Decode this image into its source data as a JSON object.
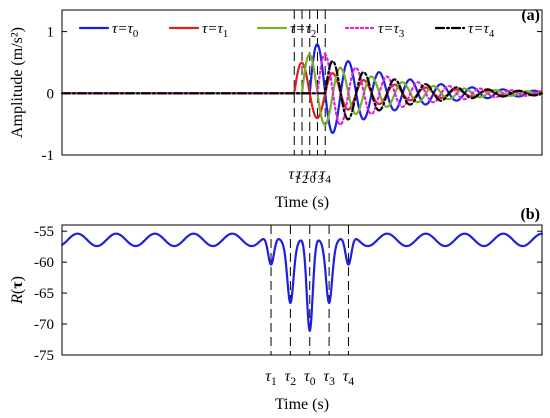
{
  "chart_data": [
    {
      "panel": "(a)",
      "type": "line",
      "xlabel": "Time (s)",
      "ylabel": "Amplitude (m/s²)",
      "ylim": [
        -1,
        1.35
      ],
      "yticks": [
        -1,
        0,
        1
      ],
      "grid": false,
      "legend": {
        "placement": "top",
        "orientation": "horizontal"
      },
      "marker_labels": [
        {
          "sym": "τ",
          "sub": "1"
        },
        {
          "sym": "τ",
          "sub": "2"
        },
        {
          "sym": "τ",
          "sub": "0"
        },
        {
          "sym": "τ",
          "sub": "3"
        },
        {
          "sym": "τ",
          "sub": "4"
        }
      ],
      "marker_times": [
        0.8,
        1.0,
        1.2,
        1.4,
        1.6
      ],
      "xlim": [
        -5.2,
        7.2
      ],
      "series": [
        {
          "name": "τ=τ0",
          "label_sym": "τ=τ",
          "label_sub": "0",
          "color": "#1f1fe0",
          "style": "solid",
          "delay": 1.2,
          "peak": 0.88
        },
        {
          "name": "τ=τ1",
          "label_sym": "τ=τ",
          "label_sub": "1",
          "color": "#e01f1f",
          "style": "solid",
          "delay": 0.8,
          "peak": 0.55
        },
        {
          "name": "τ=τ2",
          "label_sym": "τ=τ",
          "label_sub": "2",
          "color": "#76b02f",
          "style": "solid",
          "delay": 1.0,
          "peak": 0.7
        },
        {
          "name": "τ=τ3",
          "label_sym": "τ=τ",
          "label_sub": "3",
          "color": "#e21fe0",
          "style": "dotted",
          "delay": 1.4,
          "peak": 0.7
        },
        {
          "name": "τ=τ4",
          "label_sym": "τ=τ",
          "label_sub": "4",
          "color": "#000000",
          "style": "dashdot",
          "delay": 1.6,
          "peak": 0.58
        }
      ]
    },
    {
      "panel": "(b)",
      "type": "line",
      "xlabel": "Time (s)",
      "ylabel_sym": "R",
      "ylabel_arg": "τ",
      "ylim": [
        -75,
        -54
      ],
      "yticks": [
        -55,
        -60,
        -65,
        -70,
        -75
      ],
      "grid": false,
      "xlim": [
        -5.2,
        7.2
      ],
      "marker_labels": [
        {
          "sym": "τ",
          "sub": "1"
        },
        {
          "sym": "τ",
          "sub": "2"
        },
        {
          "sym": "τ",
          "sub": "0"
        },
        {
          "sym": "τ",
          "sub": "3"
        },
        {
          "sym": "τ",
          "sub": "4"
        }
      ],
      "marker_times": [
        0.2,
        0.7,
        1.2,
        1.7,
        2.2
      ],
      "minima": [
        {
          "label": "τ1",
          "value": -61.8
        },
        {
          "label": "τ2",
          "value": -66.0
        },
        {
          "label": "τ0",
          "value": -72.5
        },
        {
          "label": "τ3",
          "value": -66.0
        },
        {
          "label": "τ4",
          "value": -61.8
        }
      ],
      "baseline": -56,
      "series": [
        {
          "name": "R(τ)",
          "color": "#1f1fe0",
          "style": "solid"
        }
      ]
    }
  ]
}
